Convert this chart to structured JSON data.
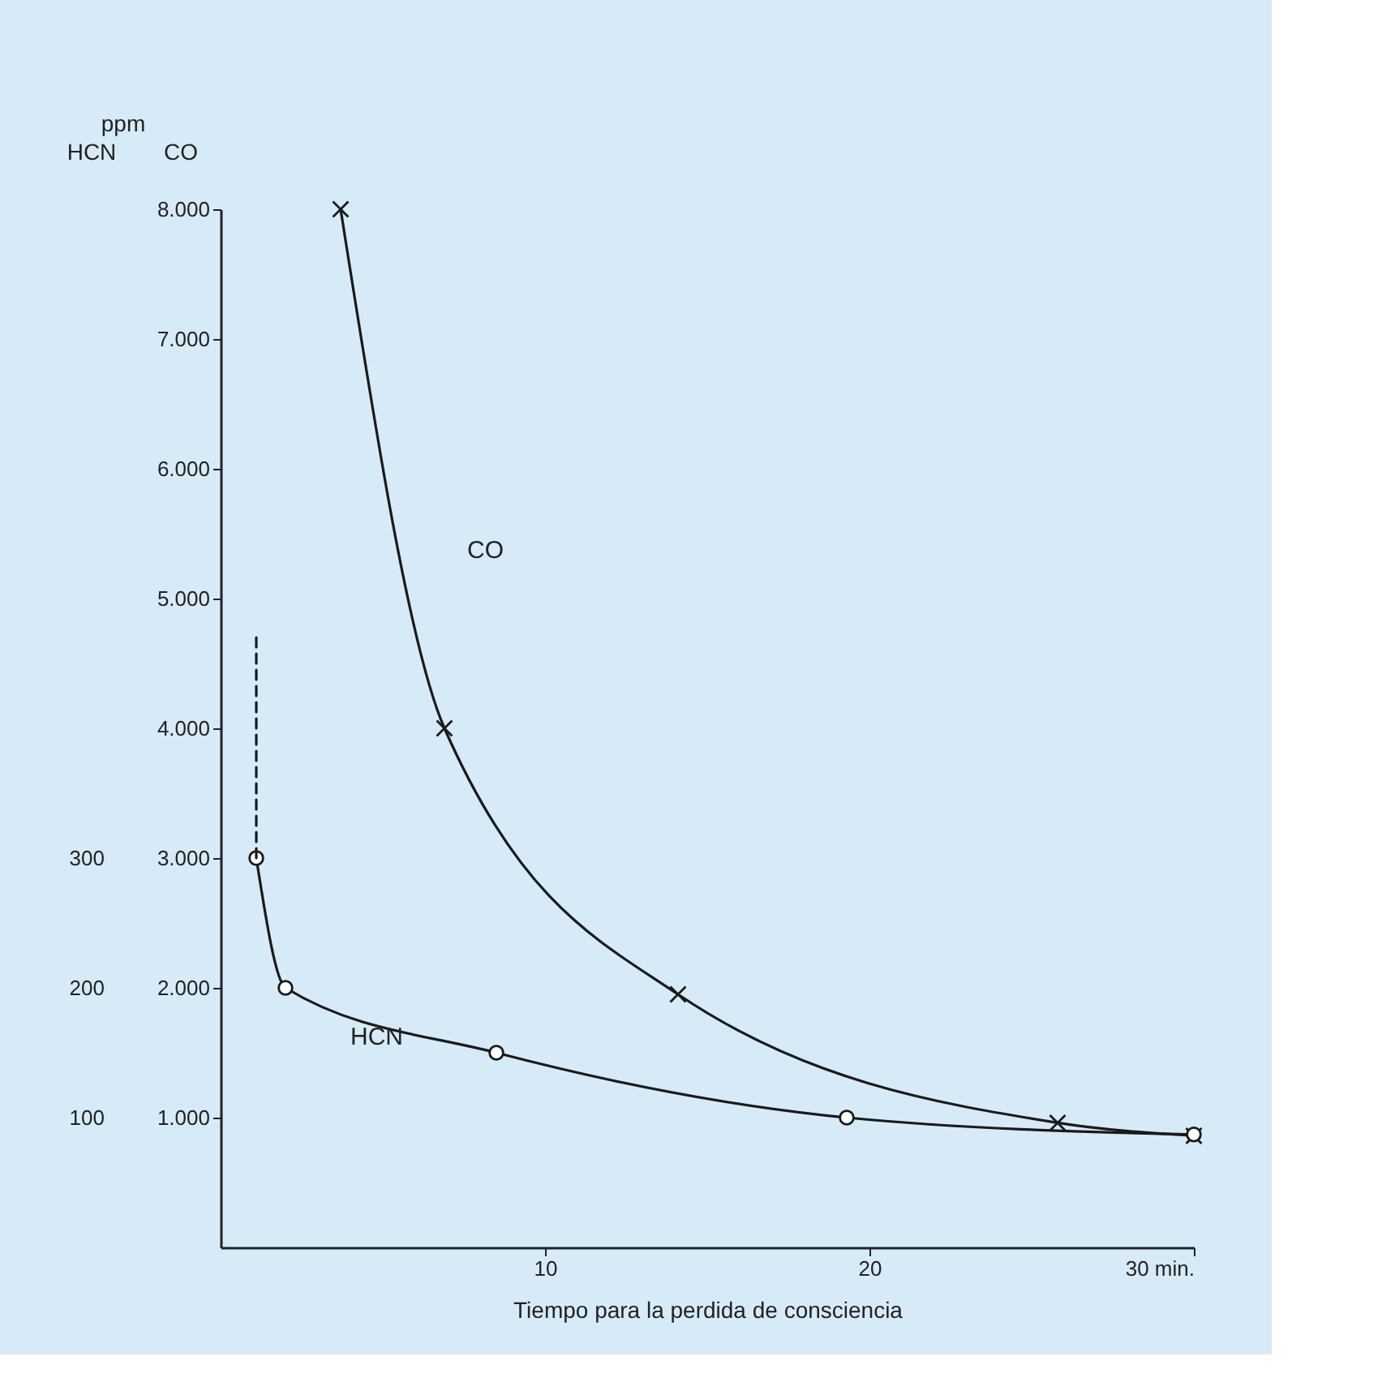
{
  "chart_data": {
    "type": "line",
    "xlabel": "Tiempo para la perdida de consciencia",
    "ylabel": "CO",
    "y2label": "HCN",
    "annotations": [
      "ppm"
    ],
    "xlim": [
      0,
      30
    ],
    "xticks": [
      10,
      20,
      {
        "value": 30,
        "label": "30 min."
      }
    ],
    "ylim": [
      0,
      8000
    ],
    "yticks": [
      {
        "value": 1000,
        "label": "1.000"
      },
      {
        "value": 2000,
        "label": "2.000"
      },
      {
        "value": 3000,
        "label": "3.000"
      },
      {
        "value": 4000,
        "label": "4.000"
      },
      {
        "value": 5000,
        "label": "5.000"
      },
      {
        "value": 6000,
        "label": "6.000"
      },
      {
        "value": 7000,
        "label": "7.000"
      },
      {
        "value": 8000,
        "label": "8.000"
      }
    ],
    "y2lim": [
      0,
      800
    ],
    "y2ticks": [
      100,
      200,
      300
    ],
    "grid": false,
    "series": [
      {
        "name": "CO",
        "color": "#1a1a1a",
        "marker": "cross",
        "line_style": "solid",
        "x": [
          3.7,
          6.9,
          14.1,
          25.8,
          30
        ],
        "values": [
          8000,
          4000,
          1950,
          960,
          860
        ]
      },
      {
        "name": "HCN",
        "color": "#1a1a1a",
        "marker": "circle",
        "line_style": "solid",
        "axis": "y2",
        "x": [
          1.1,
          2.0,
          8.5,
          19.3,
          30
        ],
        "values": [
          300,
          200,
          150,
          100,
          87
        ]
      },
      {
        "color": "#1a1a1a",
        "marker": "none",
        "line_style": "dashed",
        "axis": "y2",
        "x": [
          1.1,
          1.1
        ],
        "values": [
          300,
          470
        ]
      }
    ]
  }
}
